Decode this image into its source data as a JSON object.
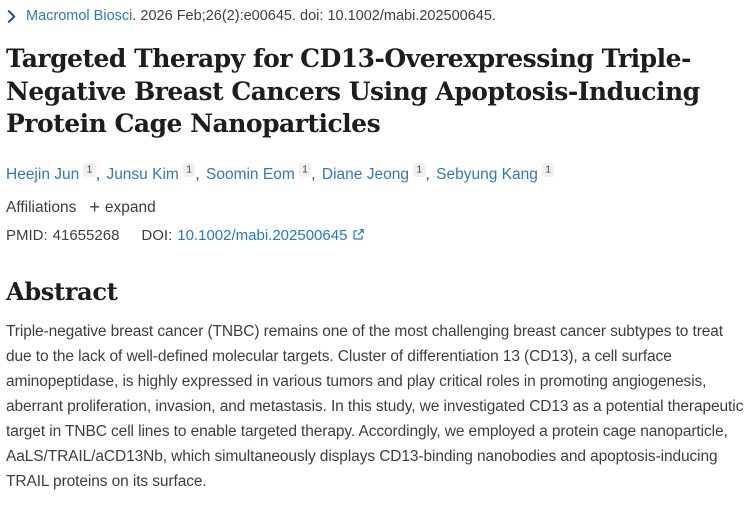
{
  "citation": {
    "journal_link": "Macromol Biosci",
    "rest": ". 2026 Feb;26(2):e00645. doi: 10.1002/mabi.202500645."
  },
  "title": "Targeted Therapy for CD13-Overexpressing Triple-Negative Breast Cancers Using Apoptosis-Inducing Protein Cage Nanoparticles",
  "authors": [
    {
      "name": "Heejin Jun",
      "affiliation_sup": "1"
    },
    {
      "name": "Junsu Kim",
      "affiliation_sup": "1"
    },
    {
      "name": "Soomin Eom",
      "affiliation_sup": "1"
    },
    {
      "name": "Diane Jeong",
      "affiliation_sup": "1"
    },
    {
      "name": "Sebyung Kang",
      "affiliation_sup": "1"
    }
  ],
  "affiliations": {
    "label": "Affiliations",
    "expand_label": "expand"
  },
  "identifiers": {
    "pmid_label": "PMID:",
    "pmid_value": "41655268",
    "doi_label": "DOI:",
    "doi_value": "10.1002/mabi.202500645"
  },
  "abstract": {
    "heading": "Abstract",
    "text": "Triple-negative breast cancer (TNBC) remains one of the most challenging breast cancer subtypes to treat due to the lack of well-defined molecular targets. Cluster of differentiation 13 (CD13), a cell surface aminopeptidase, is highly expressed in various tumors and play critical roles in promoting angiogenesis, aberrant proliferation, invasion, and metastasis. In this study, we investigated CD13 as a potential therapeutic target in TNBC cell lines to enable targeted therapy. Accordingly, we employed a protein cage nanoparticle, AaLS/TRAIL/aCD13Nb, which simultaneously displays CD13-binding nanobodies and apoptosis-inducing TRAIL proteins on its surface."
  },
  "icons": {
    "citation_toggle": "chevron-right-icon",
    "expand": "plus-icon",
    "doi_external": "external-link-icon",
    "plus_glyph": "+"
  },
  "colors": {
    "link_blue": "#2e7bb8",
    "doi_link_blue": "#1b7cd0",
    "chevron_navy": "#20558a",
    "heading_text": "#1c1d1e",
    "body_text": "#3a3f44",
    "superscript_bg": "#efefef"
  }
}
